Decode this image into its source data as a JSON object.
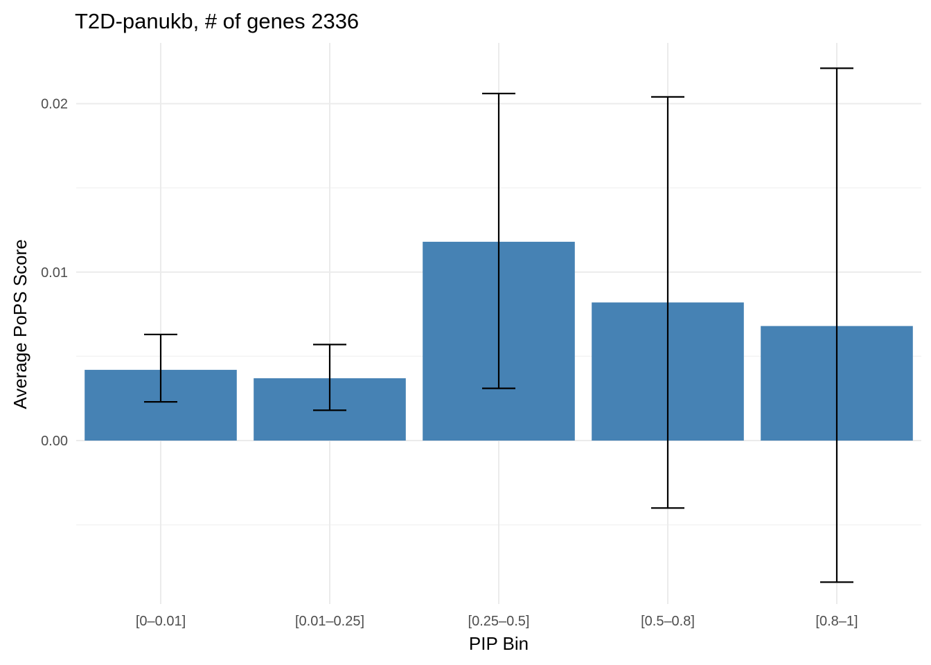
{
  "chart_data": {
    "type": "bar",
    "title": "T2D-panukb, # of genes 2336",
    "xlabel": "PIP Bin",
    "ylabel": "Average PoPS Score",
    "categories": [
      "[0–0.01]",
      "[0.01–0.25]",
      "[0.25–0.5]",
      "[0.5–0.8]",
      "[0.8–1]"
    ],
    "values": [
      0.0042,
      0.0037,
      0.0118,
      0.0082,
      0.0068
    ],
    "error_low": [
      0.0023,
      0.0018,
      0.0031,
      -0.004,
      -0.0084
    ],
    "error_high": [
      0.0063,
      0.0057,
      0.0206,
      0.0204,
      0.0221
    ],
    "ylim": [
      -0.0097,
      0.0236
    ],
    "yticks": [
      0.0,
      0.01,
      0.02
    ],
    "ytick_labels": [
      "0.00",
      "0.01",
      "0.02"
    ],
    "grid": true,
    "legend": "none",
    "bar_color": "#4682b4"
  }
}
